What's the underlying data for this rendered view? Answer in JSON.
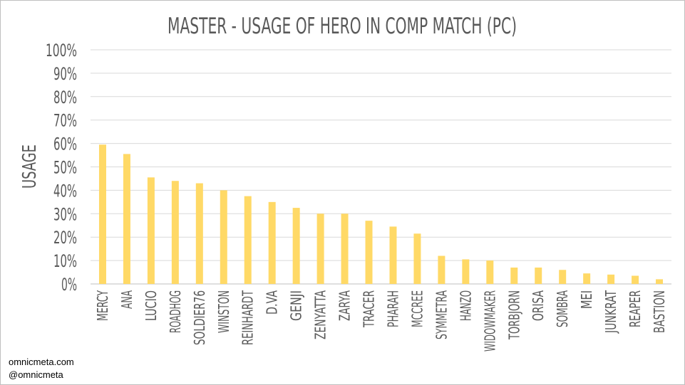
{
  "chart_data": {
    "type": "bar",
    "title": "MASTER - USAGE OF HERO IN COMP MATCH (PC)",
    "xlabel": "",
    "ylabel": "USAGE",
    "ylim": [
      0,
      100
    ],
    "yticks": [
      "0%",
      "10%",
      "20%",
      "30%",
      "40%",
      "50%",
      "60%",
      "70%",
      "80%",
      "90%",
      "100%"
    ],
    "grid": true,
    "bar_color": "#ffd966",
    "categories": [
      "MERCY",
      "ANA",
      "LUCIO",
      "ROADHOG",
      "SOLDIER76",
      "WINSTON",
      "REINHARDT",
      "D.VA",
      "GENJI",
      "ZENYATTA",
      "ZARYA",
      "TRACER",
      "PHARAH",
      "MCCREE",
      "SYMMETRA",
      "HANZO",
      "WIDOWMAKER",
      "TORBJORN",
      "ORISA",
      "SOMBRA",
      "MEI",
      "JUNKRAT",
      "REAPER",
      "BASTION"
    ],
    "values": [
      59.5,
      55.5,
      45.5,
      44,
      43,
      40,
      37.5,
      35,
      32.5,
      30,
      30,
      27,
      24.5,
      21.5,
      12,
      10.5,
      10,
      7,
      7,
      6,
      4.5,
      4,
      3.5,
      2
    ]
  },
  "footer": {
    "line1": "omnicmeta.com",
    "line2": "@omnicmeta"
  }
}
